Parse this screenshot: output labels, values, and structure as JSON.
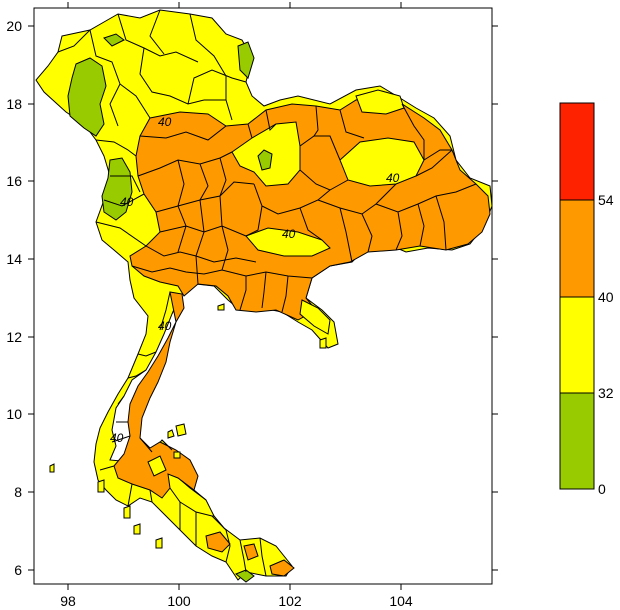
{
  "map": {
    "x_ticks": [
      "98",
      "100",
      "102",
      "104"
    ],
    "y_ticks": [
      "20",
      "18",
      "16",
      "14",
      "12",
      "10",
      "8",
      "6"
    ],
    "contour_labels": [
      "40",
      "40",
      "40",
      "40",
      "40",
      "40"
    ]
  },
  "legend": {
    "bins": [
      {
        "from": "0",
        "to": "32",
        "color": "#99cc00"
      },
      {
        "from": "32",
        "to": "40",
        "color": "#ffff00"
      },
      {
        "from": "40",
        "to": "54",
        "color": "#ff9900"
      },
      {
        "from": "54",
        "to": "",
        "color": "#ff2200"
      }
    ],
    "tick_labels": [
      "54",
      "40",
      "32",
      "0"
    ]
  },
  "colors": {
    "orange": "#ff9900",
    "yellow": "#ffff00",
    "green": "#99cc00",
    "red": "#ff2200"
  }
}
